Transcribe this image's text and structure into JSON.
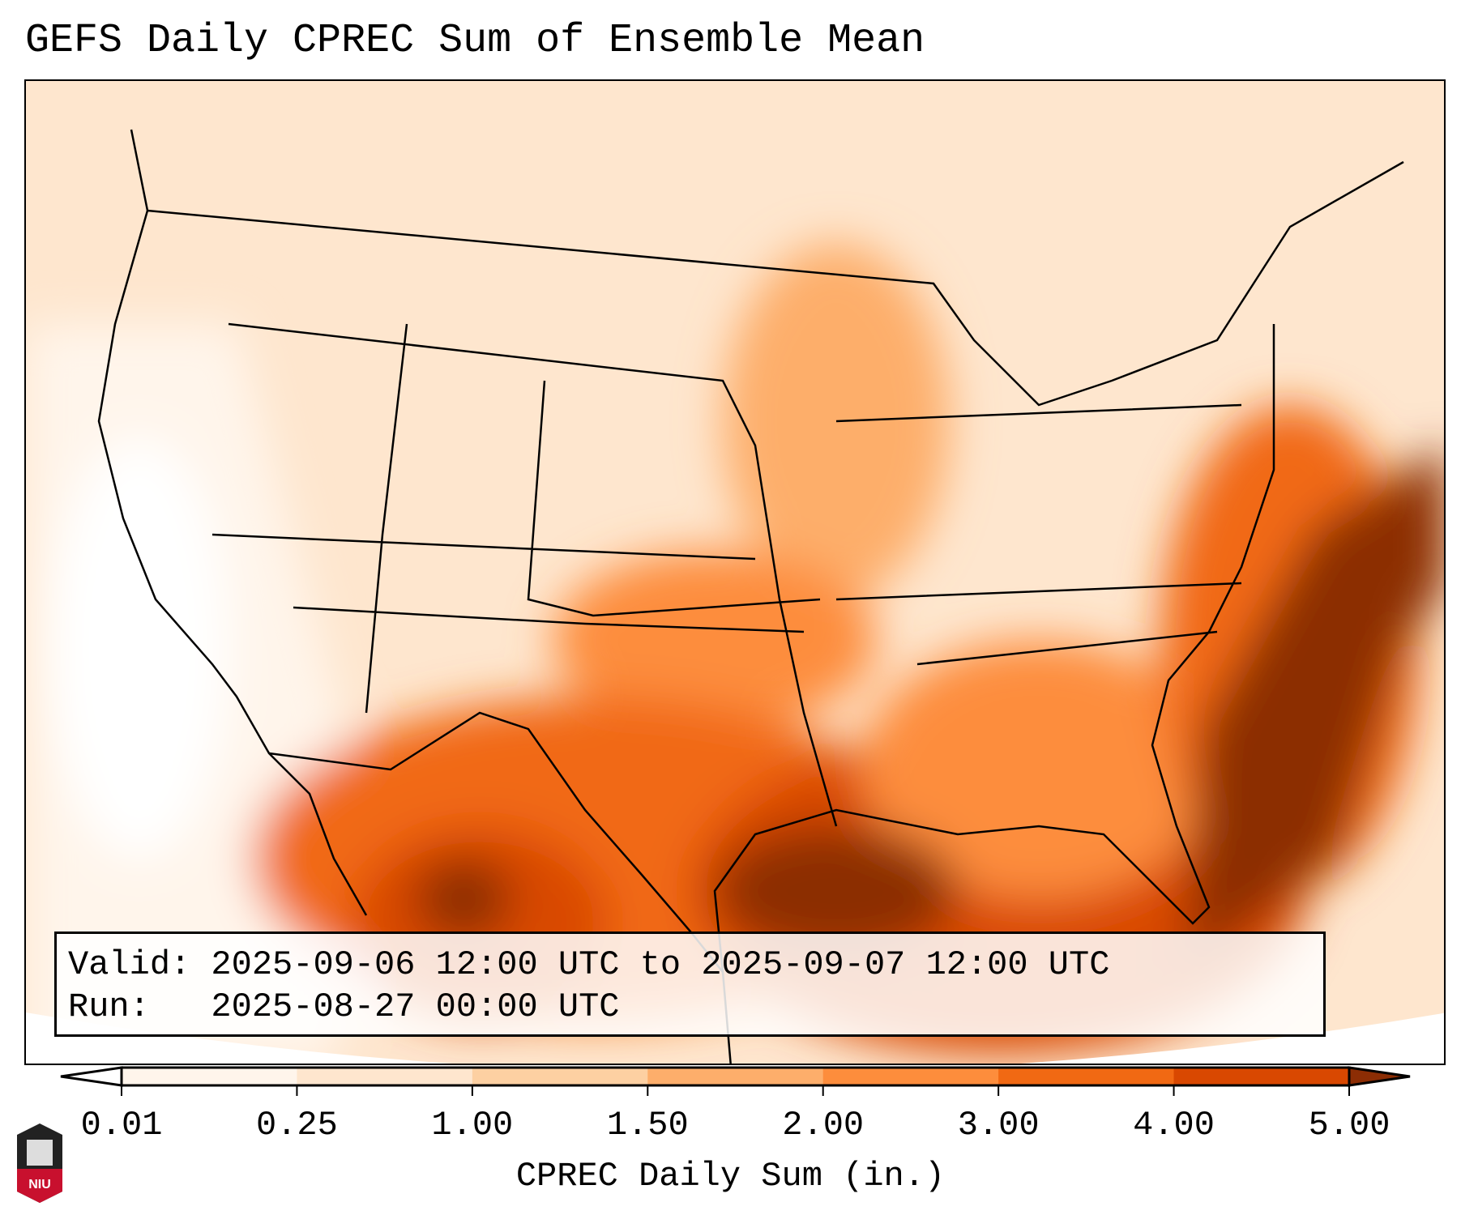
{
  "chart_data": {
    "type": "heatmap",
    "title": "GEFS Daily CPREC Sum of Ensemble Mean",
    "colorbar": {
      "label": "CPREC Daily Sum (in.)",
      "ticks": [
        "0.01",
        "0.25",
        "1.00",
        "1.50",
        "2.00",
        "3.00",
        "4.00",
        "5.00"
      ],
      "colors": [
        "#fff5eb",
        "#fee6ce",
        "#fdd0a2",
        "#fdae6b",
        "#fd8d3c",
        "#f16913",
        "#d94801"
      ],
      "under_color": "#ffffff",
      "over_color": "#8c2d04",
      "extend": "both"
    }
  },
  "info": {
    "valid": "Valid: 2025-09-06 12:00 UTC to 2025-09-07 12:00 UTC",
    "run": "Run:   2025-08-27 00:00 UTC"
  },
  "logo": {
    "text": "NIU"
  }
}
